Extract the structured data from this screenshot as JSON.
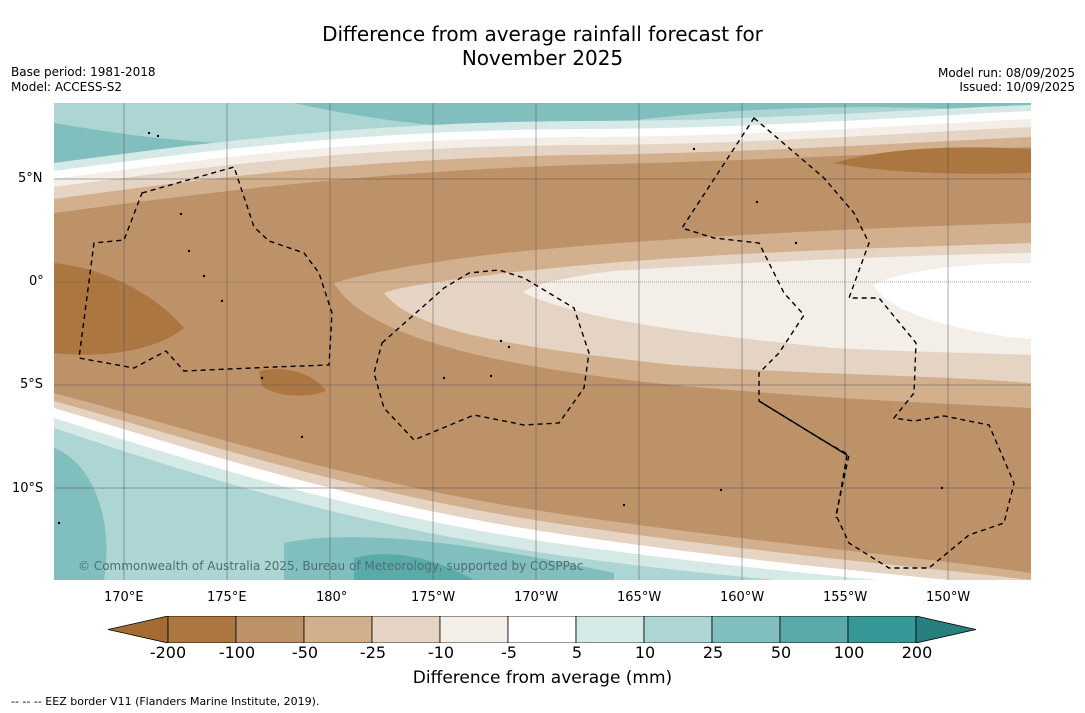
{
  "title_line1": "Difference from average rainfall forecast for",
  "title_line2": "November 2025",
  "base_period": "Base period: 1981-2018",
  "model": "Model: ACCESS-S2",
  "model_run": "Model run: 08/09/2025",
  "issued": "Issued: 10/09/2025",
  "copyright": "© Commonwealth of Australia 2025, Bureau of Meteorology, supported by COSPPac",
  "lat_labels": [
    "5°N",
    "0°",
    "5°S",
    "10°S"
  ],
  "lon_labels": [
    "170°E",
    "175°E",
    "180°",
    "175°W",
    "170°W",
    "165°W",
    "160°W",
    "155°W",
    "150°W"
  ],
  "colorbar": {
    "ticks": [
      "-200",
      "-100",
      "-50",
      "-25",
      "-10",
      "-5",
      "5",
      "10",
      "25",
      "50",
      "100",
      "200"
    ],
    "colors": [
      "#a46c33",
      "#ac7641",
      "#be9268",
      "#d2b08e",
      "#e5d4c3",
      "#f3eee8",
      "#ffffff",
      "#d5e9e6",
      "#acd5d3",
      "#80bfbe",
      "#5aaaa9",
      "#379997",
      "#27807e"
    ],
    "label": "Difference from average (mm)"
  },
  "legend_note": "--  --  -- EEZ border V11 (Flanders Marine Institute, 2019)."
}
